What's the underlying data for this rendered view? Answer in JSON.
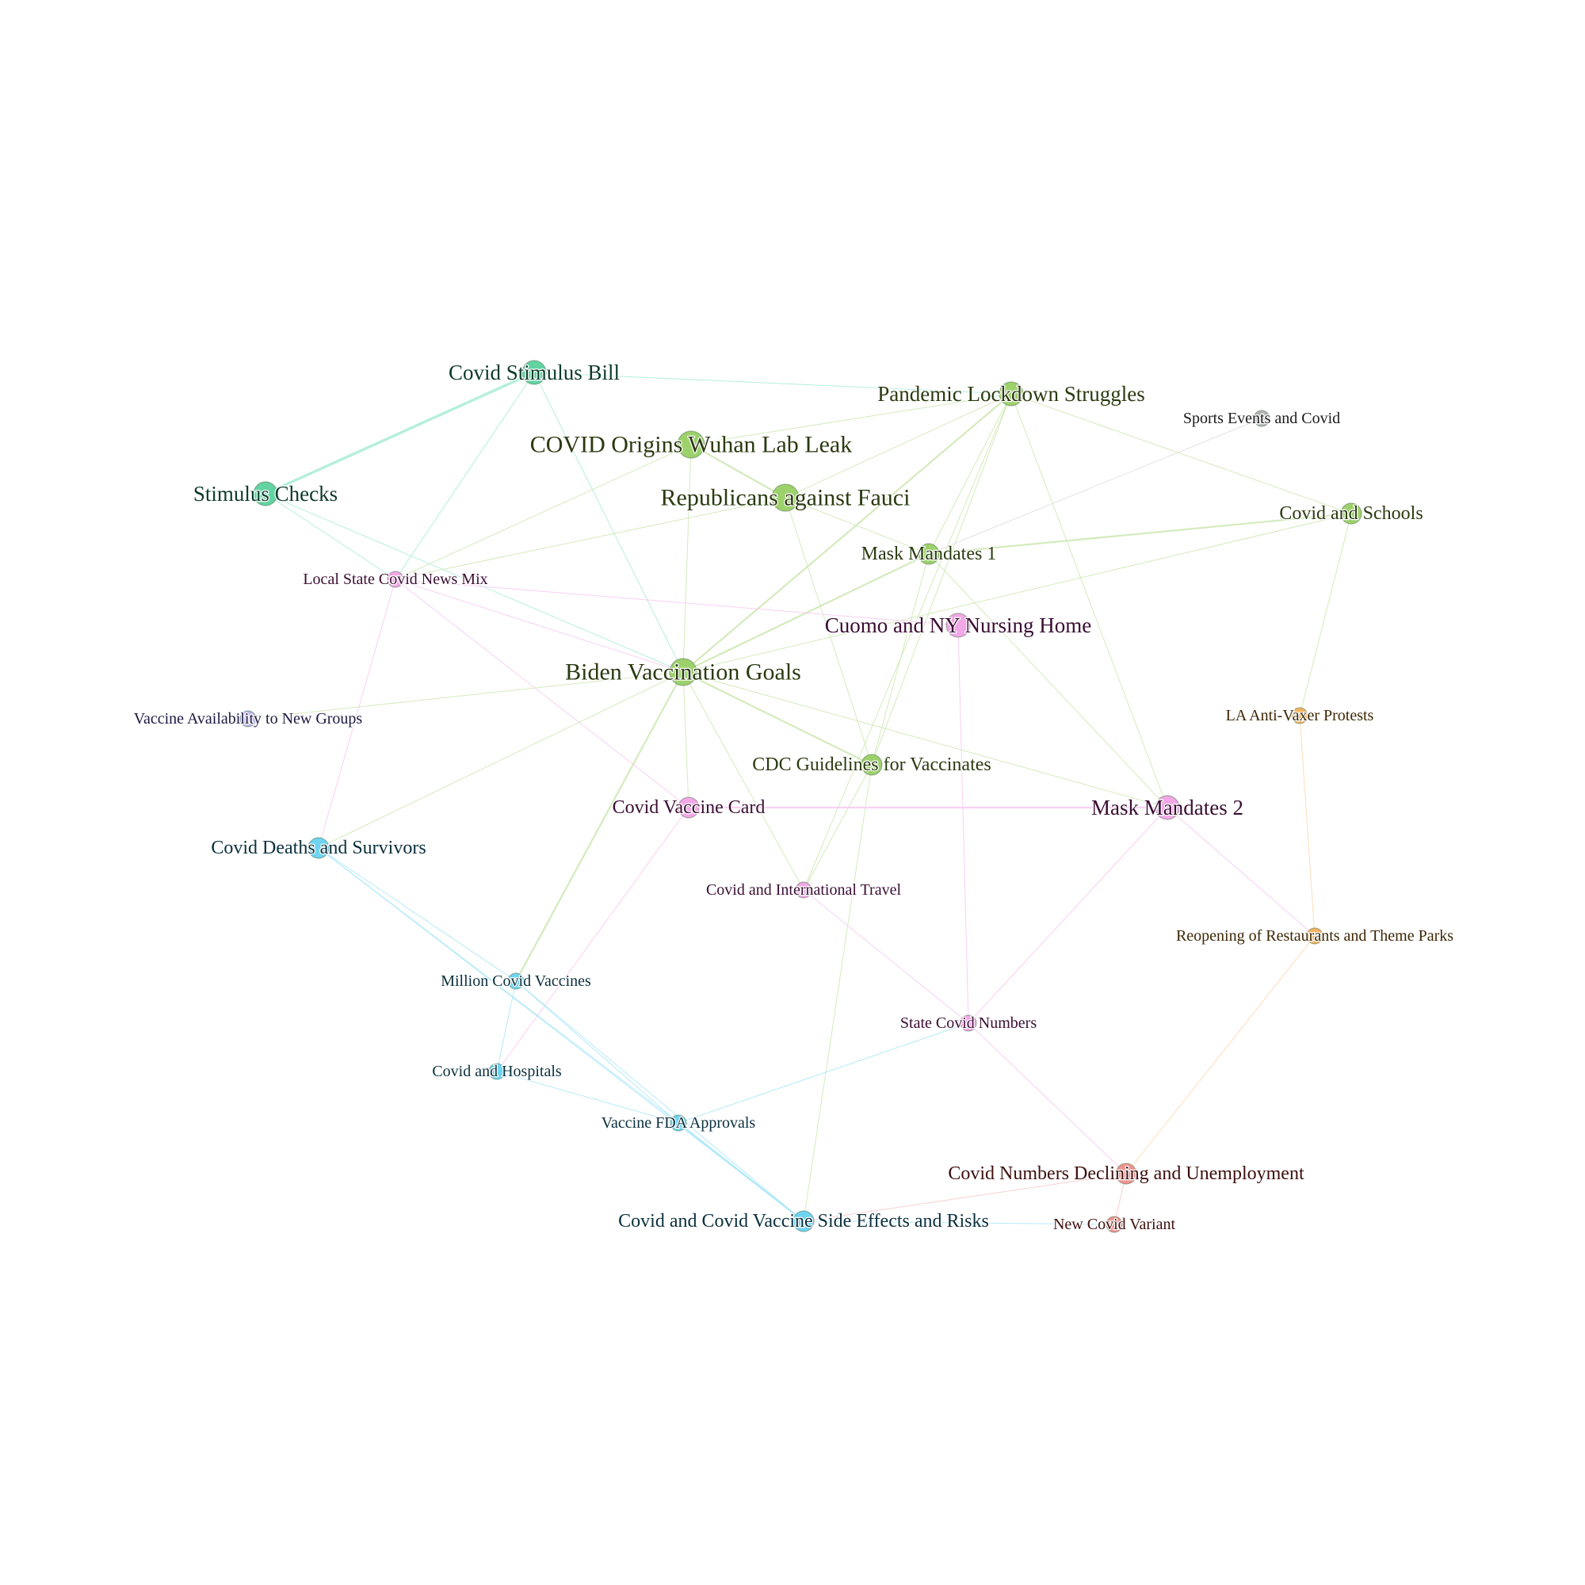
{
  "nodes": [
    {
      "id": "covid-stimulus-bill",
      "label": "Covid Stimulus Bill",
      "group": "teal",
      "weight": 2
    },
    {
      "id": "pandemic-lockdown-struggles",
      "label": "Pandemic Lockdown Struggles",
      "group": "green",
      "weight": 2
    },
    {
      "id": "sports-events-and-covid",
      "label": "Sports Events and Covid",
      "group": "gray",
      "weight": 0
    },
    {
      "id": "covid-origins-wuhan-lab-leak",
      "label": "COVID Origins Wuhan Lab Leak",
      "group": "green",
      "weight": 3
    },
    {
      "id": "republicans-against-fauci",
      "label": "Republicans against Fauci",
      "group": "green",
      "weight": 3
    },
    {
      "id": "stimulus-checks",
      "label": "Stimulus Checks",
      "group": "teal",
      "weight": 2
    },
    {
      "id": "covid-and-schools",
      "label": "Covid and Schools",
      "group": "green",
      "weight": 1
    },
    {
      "id": "mask-mandates-1",
      "label": "Mask Mandates 1",
      "group": "green",
      "weight": 1
    },
    {
      "id": "local-state-covid-news-mix",
      "label": "Local State Covid News Mix",
      "group": "pink",
      "weight": 0
    },
    {
      "id": "cuomo-and-ny-nursing-home",
      "label": "Cuomo and NY Nursing Home",
      "group": "pink",
      "weight": 2
    },
    {
      "id": "biden-vaccination-goals",
      "label": "Biden Vaccination Goals",
      "group": "green",
      "weight": 3
    },
    {
      "id": "vaccine-availability-to-new-groups",
      "label": "Vaccine Availability to New Groups",
      "group": "lavender",
      "weight": 0
    },
    {
      "id": "la-anti-vaxer-protests",
      "label": "LA Anti-Vaxer Protests",
      "group": "orange",
      "weight": 0
    },
    {
      "id": "cdc-guidelines-for-vaccinates",
      "label": "CDC Guidelines for Vaccinates",
      "group": "green",
      "weight": 1
    },
    {
      "id": "covid-vaccine-card",
      "label": "Covid Vaccine Card",
      "group": "pink",
      "weight": 1
    },
    {
      "id": "mask-mandates-2",
      "label": "Mask Mandates 2",
      "group": "pink",
      "weight": 2
    },
    {
      "id": "covid-deaths-and-survivors",
      "label": "Covid Deaths and Survivors",
      "group": "blue",
      "weight": 1
    },
    {
      "id": "covid-and-international-travel",
      "label": "Covid and International Travel",
      "group": "pink",
      "weight": 0
    },
    {
      "id": "reopening-of-restaurants-and-theme-parks",
      "label": "Reopening of Restaurants and Theme Parks",
      "group": "orange",
      "weight": 0
    },
    {
      "id": "million-covid-vaccines",
      "label": "Million Covid Vaccines",
      "group": "blue",
      "weight": 0
    },
    {
      "id": "state-covid-numbers",
      "label": "State Covid Numbers",
      "group": "pink",
      "weight": 0
    },
    {
      "id": "covid-and-hospitals",
      "label": "Covid and Hospitals",
      "group": "blue",
      "weight": 0
    },
    {
      "id": "vaccine-fda-approvals",
      "label": "Vaccine FDA Approvals",
      "group": "blue",
      "weight": 0
    },
    {
      "id": "covid-numbers-declining-and-unemployment",
      "label": "Covid Numbers Declining and Unemployment",
      "group": "red",
      "weight": 1
    },
    {
      "id": "covid-and-covid-vaccine-side-effects-and-risks",
      "label": "Covid and Covid Vaccine Side Effects and Risks",
      "group": "blue",
      "weight": 1
    },
    {
      "id": "new-covid-variant",
      "label": "New Covid Variant",
      "group": "red",
      "weight": 0
    }
  ],
  "edges": [
    [
      "covid-stimulus-bill",
      "stimulus-checks",
      3
    ],
    [
      "covid-stimulus-bill",
      "pandemic-lockdown-struggles",
      1
    ],
    [
      "covid-stimulus-bill",
      "local-state-covid-news-mix",
      1
    ],
    [
      "covid-stimulus-bill",
      "biden-vaccination-goals",
      1
    ],
    [
      "stimulus-checks",
      "biden-vaccination-goals",
      1
    ],
    [
      "stimulus-checks",
      "local-state-covid-news-mix",
      1
    ],
    [
      "covid-origins-wuhan-lab-leak",
      "republicans-against-fauci",
      2
    ],
    [
      "covid-origins-wuhan-lab-leak",
      "biden-vaccination-goals",
      1
    ],
    [
      "covid-origins-wuhan-lab-leak",
      "local-state-covid-news-mix",
      1
    ],
    [
      "covid-origins-wuhan-lab-leak",
      "pandemic-lockdown-struggles",
      1
    ],
    [
      "republicans-against-fauci",
      "mask-mandates-1",
      1
    ],
    [
      "republicans-against-fauci",
      "cdc-guidelines-for-vaccinates",
      1
    ],
    [
      "republicans-against-fauci",
      "local-state-covid-news-mix",
      1
    ],
    [
      "pandemic-lockdown-struggles",
      "covid-and-schools",
      1
    ],
    [
      "pandemic-lockdown-struggles",
      "mask-mandates-1",
      1
    ],
    [
      "pandemic-lockdown-struggles",
      "biden-vaccination-goals",
      2
    ],
    [
      "pandemic-lockdown-struggles",
      "cdc-guidelines-for-vaccinates",
      1
    ],
    [
      "pandemic-lockdown-struggles",
      "mask-mandates-2",
      1
    ],
    [
      "pandemic-lockdown-struggles",
      "republicans-against-fauci",
      1
    ],
    [
      "pandemic-lockdown-struggles",
      "covid-and-international-travel",
      1
    ],
    [
      "sports-events-and-covid",
      "mask-mandates-1",
      1
    ],
    [
      "mask-mandates-1",
      "covid-and-schools",
      2
    ],
    [
      "mask-mandates-1",
      "biden-vaccination-goals",
      2
    ],
    [
      "mask-mandates-1",
      "cdc-guidelines-for-vaccinates",
      1
    ],
    [
      "mask-mandates-1",
      "mask-mandates-2",
      1
    ],
    [
      "covid-and-schools",
      "la-anti-vaxer-protests",
      1
    ],
    [
      "covid-and-schools",
      "biden-vaccination-goals",
      1
    ],
    [
      "local-state-covid-news-mix",
      "cuomo-and-ny-nursing-home",
      1
    ],
    [
      "local-state-covid-news-mix",
      "covid-vaccine-card",
      1
    ],
    [
      "local-state-covid-news-mix",
      "covid-deaths-and-survivors",
      1
    ],
    [
      "local-state-covid-news-mix",
      "biden-vaccination-goals",
      1
    ],
    [
      "cuomo-and-ny-nursing-home",
      "state-covid-numbers",
      1
    ],
    [
      "biden-vaccination-goals",
      "vaccine-availability-to-new-groups",
      1
    ],
    [
      "biden-vaccination-goals",
      "cdc-guidelines-for-vaccinates",
      2
    ],
    [
      "biden-vaccination-goals",
      "covid-vaccine-card",
      1
    ],
    [
      "biden-vaccination-goals",
      "mask-mandates-2",
      1
    ],
    [
      "biden-vaccination-goals",
      "covid-deaths-and-survivors",
      1
    ],
    [
      "biden-vaccination-goals",
      "million-covid-vaccines",
      2
    ],
    [
      "biden-vaccination-goals",
      "covid-and-international-travel",
      1
    ],
    [
      "cdc-guidelines-for-vaccinates",
      "covid-and-international-travel",
      1
    ],
    [
      "cdc-guidelines-for-vaccinates",
      "covid-and-covid-vaccine-side-effects-and-risks",
      1
    ],
    [
      "covid-vaccine-card",
      "mask-mandates-2",
      2
    ],
    [
      "covid-vaccine-card",
      "covid-and-hospitals",
      1
    ],
    [
      "mask-mandates-2",
      "state-covid-numbers",
      1
    ],
    [
      "mask-mandates-2",
      "reopening-of-restaurants-and-theme-parks",
      1
    ],
    [
      "la-anti-vaxer-protests",
      "reopening-of-restaurants-and-theme-parks",
      1
    ],
    [
      "reopening-of-restaurants-and-theme-parks",
      "covid-numbers-declining-and-unemployment",
      1
    ],
    [
      "covid-and-international-travel",
      "state-covid-numbers",
      1
    ],
    [
      "covid-deaths-and-survivors",
      "million-covid-vaccines",
      1
    ],
    [
      "covid-deaths-and-survivors",
      "vaccine-fda-approvals",
      1
    ],
    [
      "covid-deaths-and-survivors",
      "covid-and-covid-vaccine-side-effects-and-risks",
      1
    ],
    [
      "million-covid-vaccines",
      "covid-and-hospitals",
      1
    ],
    [
      "million-covid-vaccines",
      "vaccine-fda-approvals",
      1
    ],
    [
      "million-covid-vaccines",
      "covid-and-covid-vaccine-side-effects-and-risks",
      1
    ],
    [
      "covid-and-hospitals",
      "vaccine-fda-approvals",
      1
    ],
    [
      "vaccine-fda-approvals",
      "covid-and-covid-vaccine-side-effects-and-risks",
      2
    ],
    [
      "vaccine-fda-approvals",
      "state-covid-numbers",
      1
    ],
    [
      "state-covid-numbers",
      "covid-numbers-declining-and-unemployment",
      1
    ],
    [
      "covid-numbers-declining-and-unemployment",
      "new-covid-variant",
      1
    ],
    [
      "covid-numbers-declining-and-unemployment",
      "covid-and-covid-vaccine-side-effects-and-risks",
      1
    ],
    [
      "covid-and-covid-vaccine-side-effects-and-risks",
      "new-covid-variant",
      1
    ]
  ],
  "group_colors": {
    "green": "#9dd16c",
    "teal": "#62d3a3",
    "pink": "#f3a7e6",
    "blue": "#6ed4f2",
    "orange": "#f5b45f",
    "red": "#f0938f",
    "lavender": "#b8b2ec",
    "gray": "#b4b4b4"
  },
  "edge_colors": {
    "green": "#cde8b2",
    "teal": "#a8ecd6",
    "pink": "#f8c8f0",
    "blue": "#a8e6f8",
    "orange": "#fbd8ae",
    "red": "#f8c8c6",
    "lavender": "#d9d6f5",
    "gray": "#dddddd"
  },
  "label_colors": {
    "green": "#2a3a10",
    "teal": "#0d3a2a",
    "pink": "#3a0d33",
    "blue": "#0a2f3d",
    "orange": "#3d2705",
    "red": "#3d0f0d",
    "lavender": "#1c1940",
    "gray": "#1a1a1a"
  }
}
